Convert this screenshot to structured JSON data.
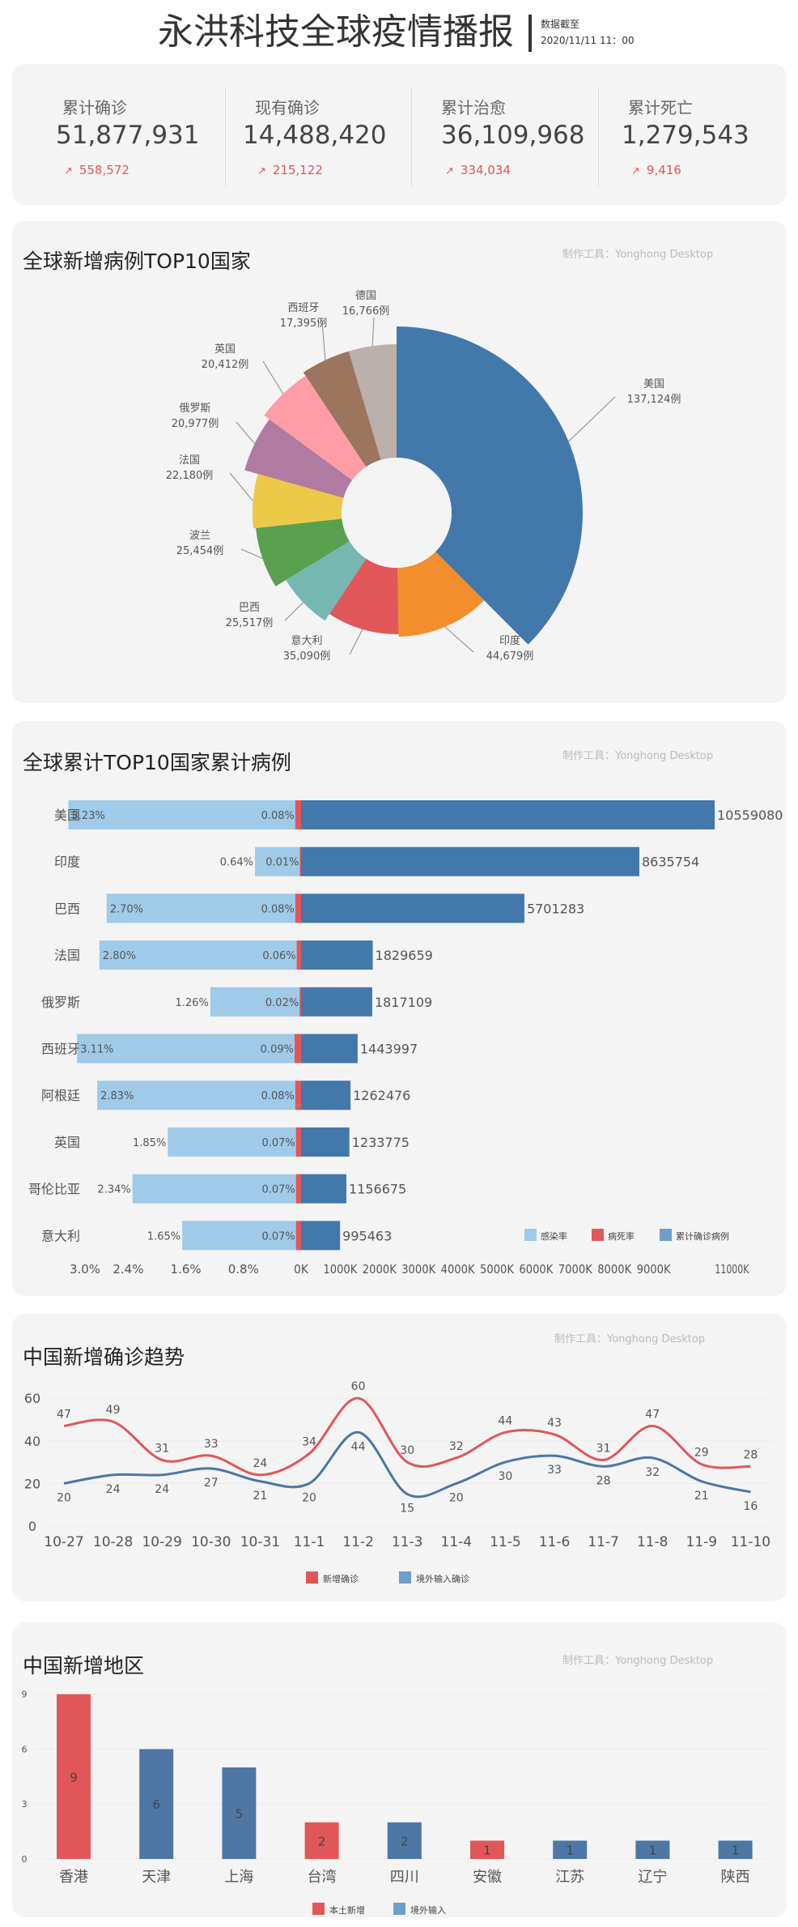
{
  "header": {
    "title": "永洪科技全球疫情播报",
    "asof_label": "数据截至",
    "asof_date": "2020/11/11 11：00"
  },
  "kpis": [
    {
      "label": "累计确诊",
      "value": "51,877,931",
      "delta": "558,572"
    },
    {
      "label": "现有确诊",
      "value": "14,488,420",
      "delta": "215,122"
    },
    {
      "label": "累计治愈",
      "value": "36,109,968",
      "delta": "334,034"
    },
    {
      "label": "累计死亡",
      "value": "1,279,543",
      "delta": "9,416"
    }
  ],
  "credit": "制作工具：Yonghong Desktop",
  "colors": {
    "card": "#f4f4f4",
    "blue": "#4378ab",
    "red": "#e15759",
    "light_blue": "#9fcae8",
    "legend_blue": "#6f9ec9"
  },
  "chart_data": [
    {
      "type": "pie",
      "title": "全球新增病例TOP10国家",
      "unit": "例",
      "slices": [
        {
          "name": "美国",
          "value": 137124,
          "label": "137,124例",
          "color": "#4378ab"
        },
        {
          "name": "印度",
          "value": 44679,
          "label": "44,679例",
          "color": "#f28e2b"
        },
        {
          "name": "意大利",
          "value": 35090,
          "label": "35,090例",
          "color": "#e15759"
        },
        {
          "name": "巴西",
          "value": 25517,
          "label": "25,517例",
          "color": "#76b7b2"
        },
        {
          "name": "波兰",
          "value": 25454,
          "label": "25,454例",
          "color": "#59a14f"
        },
        {
          "name": "法国",
          "value": 22180,
          "label": "22,180例",
          "color": "#edc948"
        },
        {
          "name": "俄罗斯",
          "value": 20977,
          "label": "20,977例",
          "color": "#b07aa1"
        },
        {
          "name": "英国",
          "value": 20412,
          "label": "20,412例",
          "color": "#ff9da7"
        },
        {
          "name": "西班牙",
          "value": 17395,
          "label": "17,395例",
          "color": "#9c755f"
        },
        {
          "name": "德国",
          "value": 16766,
          "label": "16,766例",
          "color": "#bab0ac"
        }
      ]
    },
    {
      "type": "bar",
      "title": "全球累计TOP10国家累计病例",
      "orientation": "horizontal-diverging",
      "legend": [
        "感染率",
        "病死率",
        "累计确诊病例"
      ],
      "left_ticks": [
        "3.0%",
        "2.4%",
        "1.6%",
        "0.8%"
      ],
      "left_tick_values": [
        3.0,
        2.4,
        1.6,
        0.8
      ],
      "right_ticks": [
        "0K",
        "1000K",
        "2000K",
        "3000K",
        "4000K",
        "5000K",
        "6000K",
        "7000K",
        "8000K",
        "9000K",
        "11000K"
      ],
      "right_tick_values": [
        0,
        1000,
        2000,
        3000,
        4000,
        5000,
        6000,
        7000,
        8000,
        9000,
        11000
      ],
      "rows": [
        {
          "country": "美国",
          "infection_rate": 3.23,
          "infection_label": "3.23%",
          "death_rate": 0.08,
          "death_label": "0.08%",
          "cases": 10559080,
          "cases_label": "10559080"
        },
        {
          "country": "印度",
          "infection_rate": 0.64,
          "infection_label": "0.64%",
          "death_rate": 0.01,
          "death_label": "0.01%",
          "cases": 8635754,
          "cases_label": "8635754"
        },
        {
          "country": "巴西",
          "infection_rate": 2.7,
          "infection_label": "2.70%",
          "death_rate": 0.08,
          "death_label": "0.08%",
          "cases": 5701283,
          "cases_label": "5701283"
        },
        {
          "country": "法国",
          "infection_rate": 2.8,
          "infection_label": "2.80%",
          "death_rate": 0.06,
          "death_label": "0.06%",
          "cases": 1829659,
          "cases_label": "1829659"
        },
        {
          "country": "俄罗斯",
          "infection_rate": 1.26,
          "infection_label": "1.26%",
          "death_rate": 0.02,
          "death_label": "0.02%",
          "cases": 1817109,
          "cases_label": "1817109"
        },
        {
          "country": "西班牙",
          "infection_rate": 3.11,
          "infection_label": "3.11%",
          "death_rate": 0.09,
          "death_label": "0.09%",
          "cases": 1443997,
          "cases_label": "1443997"
        },
        {
          "country": "阿根廷",
          "infection_rate": 2.83,
          "infection_label": "2.83%",
          "death_rate": 0.08,
          "death_label": "0.08%",
          "cases": 1262476,
          "cases_label": "1262476"
        },
        {
          "country": "英国",
          "infection_rate": 1.85,
          "infection_label": "1.85%",
          "death_rate": 0.07,
          "death_label": "0.07%",
          "cases": 1233775,
          "cases_label": "1233775"
        },
        {
          "country": "哥伦比亚",
          "infection_rate": 2.34,
          "infection_label": "2.34%",
          "death_rate": 0.07,
          "death_label": "0.07%",
          "cases": 1156675,
          "cases_label": "1156675"
        },
        {
          "country": "意大利",
          "infection_rate": 1.65,
          "infection_label": "1.65%",
          "death_rate": 0.07,
          "death_label": "0.07%",
          "cases": 995463,
          "cases_label": "995463"
        }
      ]
    },
    {
      "type": "line",
      "title": "中国新增确诊趋势",
      "ylim": [
        0,
        60
      ],
      "yticks": [
        "0",
        "20",
        "40",
        "60"
      ],
      "x": [
        "10-27",
        "10-28",
        "10-29",
        "10-30",
        "10-31",
        "11-1",
        "11-2",
        "11-3",
        "11-4",
        "11-5",
        "11-6",
        "11-7",
        "11-8",
        "11-9",
        "11-10"
      ],
      "series": [
        {
          "name": "新增确诊",
          "color": "#e15759",
          "values": [
            47,
            49,
            31,
            33,
            24,
            34,
            60,
            30,
            32,
            44,
            43,
            31,
            47,
            29,
            28
          ]
        },
        {
          "name": "境外输入确诊",
          "color": "#4a77a8",
          "values": [
            20,
            24,
            24,
            27,
            21,
            20,
            44,
            15,
            20,
            30,
            33,
            28,
            32,
            21,
            16
          ]
        }
      ]
    },
    {
      "type": "bar",
      "title": "中国新增地区",
      "ylim": [
        0,
        9
      ],
      "yticks": [
        "0",
        "3",
        "6",
        "9"
      ],
      "legend": [
        {
          "name": "本土新增",
          "color": "#e15759"
        },
        {
          "name": "境外输入",
          "color": "#4e77a5"
        }
      ],
      "categories": [
        "香港",
        "天津",
        "上海",
        "台湾",
        "四川",
        "安徽",
        "江苏",
        "辽宁",
        "陕西"
      ],
      "values": [
        9,
        6,
        5,
        2,
        2,
        1,
        1,
        1,
        1
      ],
      "series_index": [
        0,
        1,
        1,
        0,
        1,
        0,
        1,
        1,
        1
      ]
    }
  ]
}
